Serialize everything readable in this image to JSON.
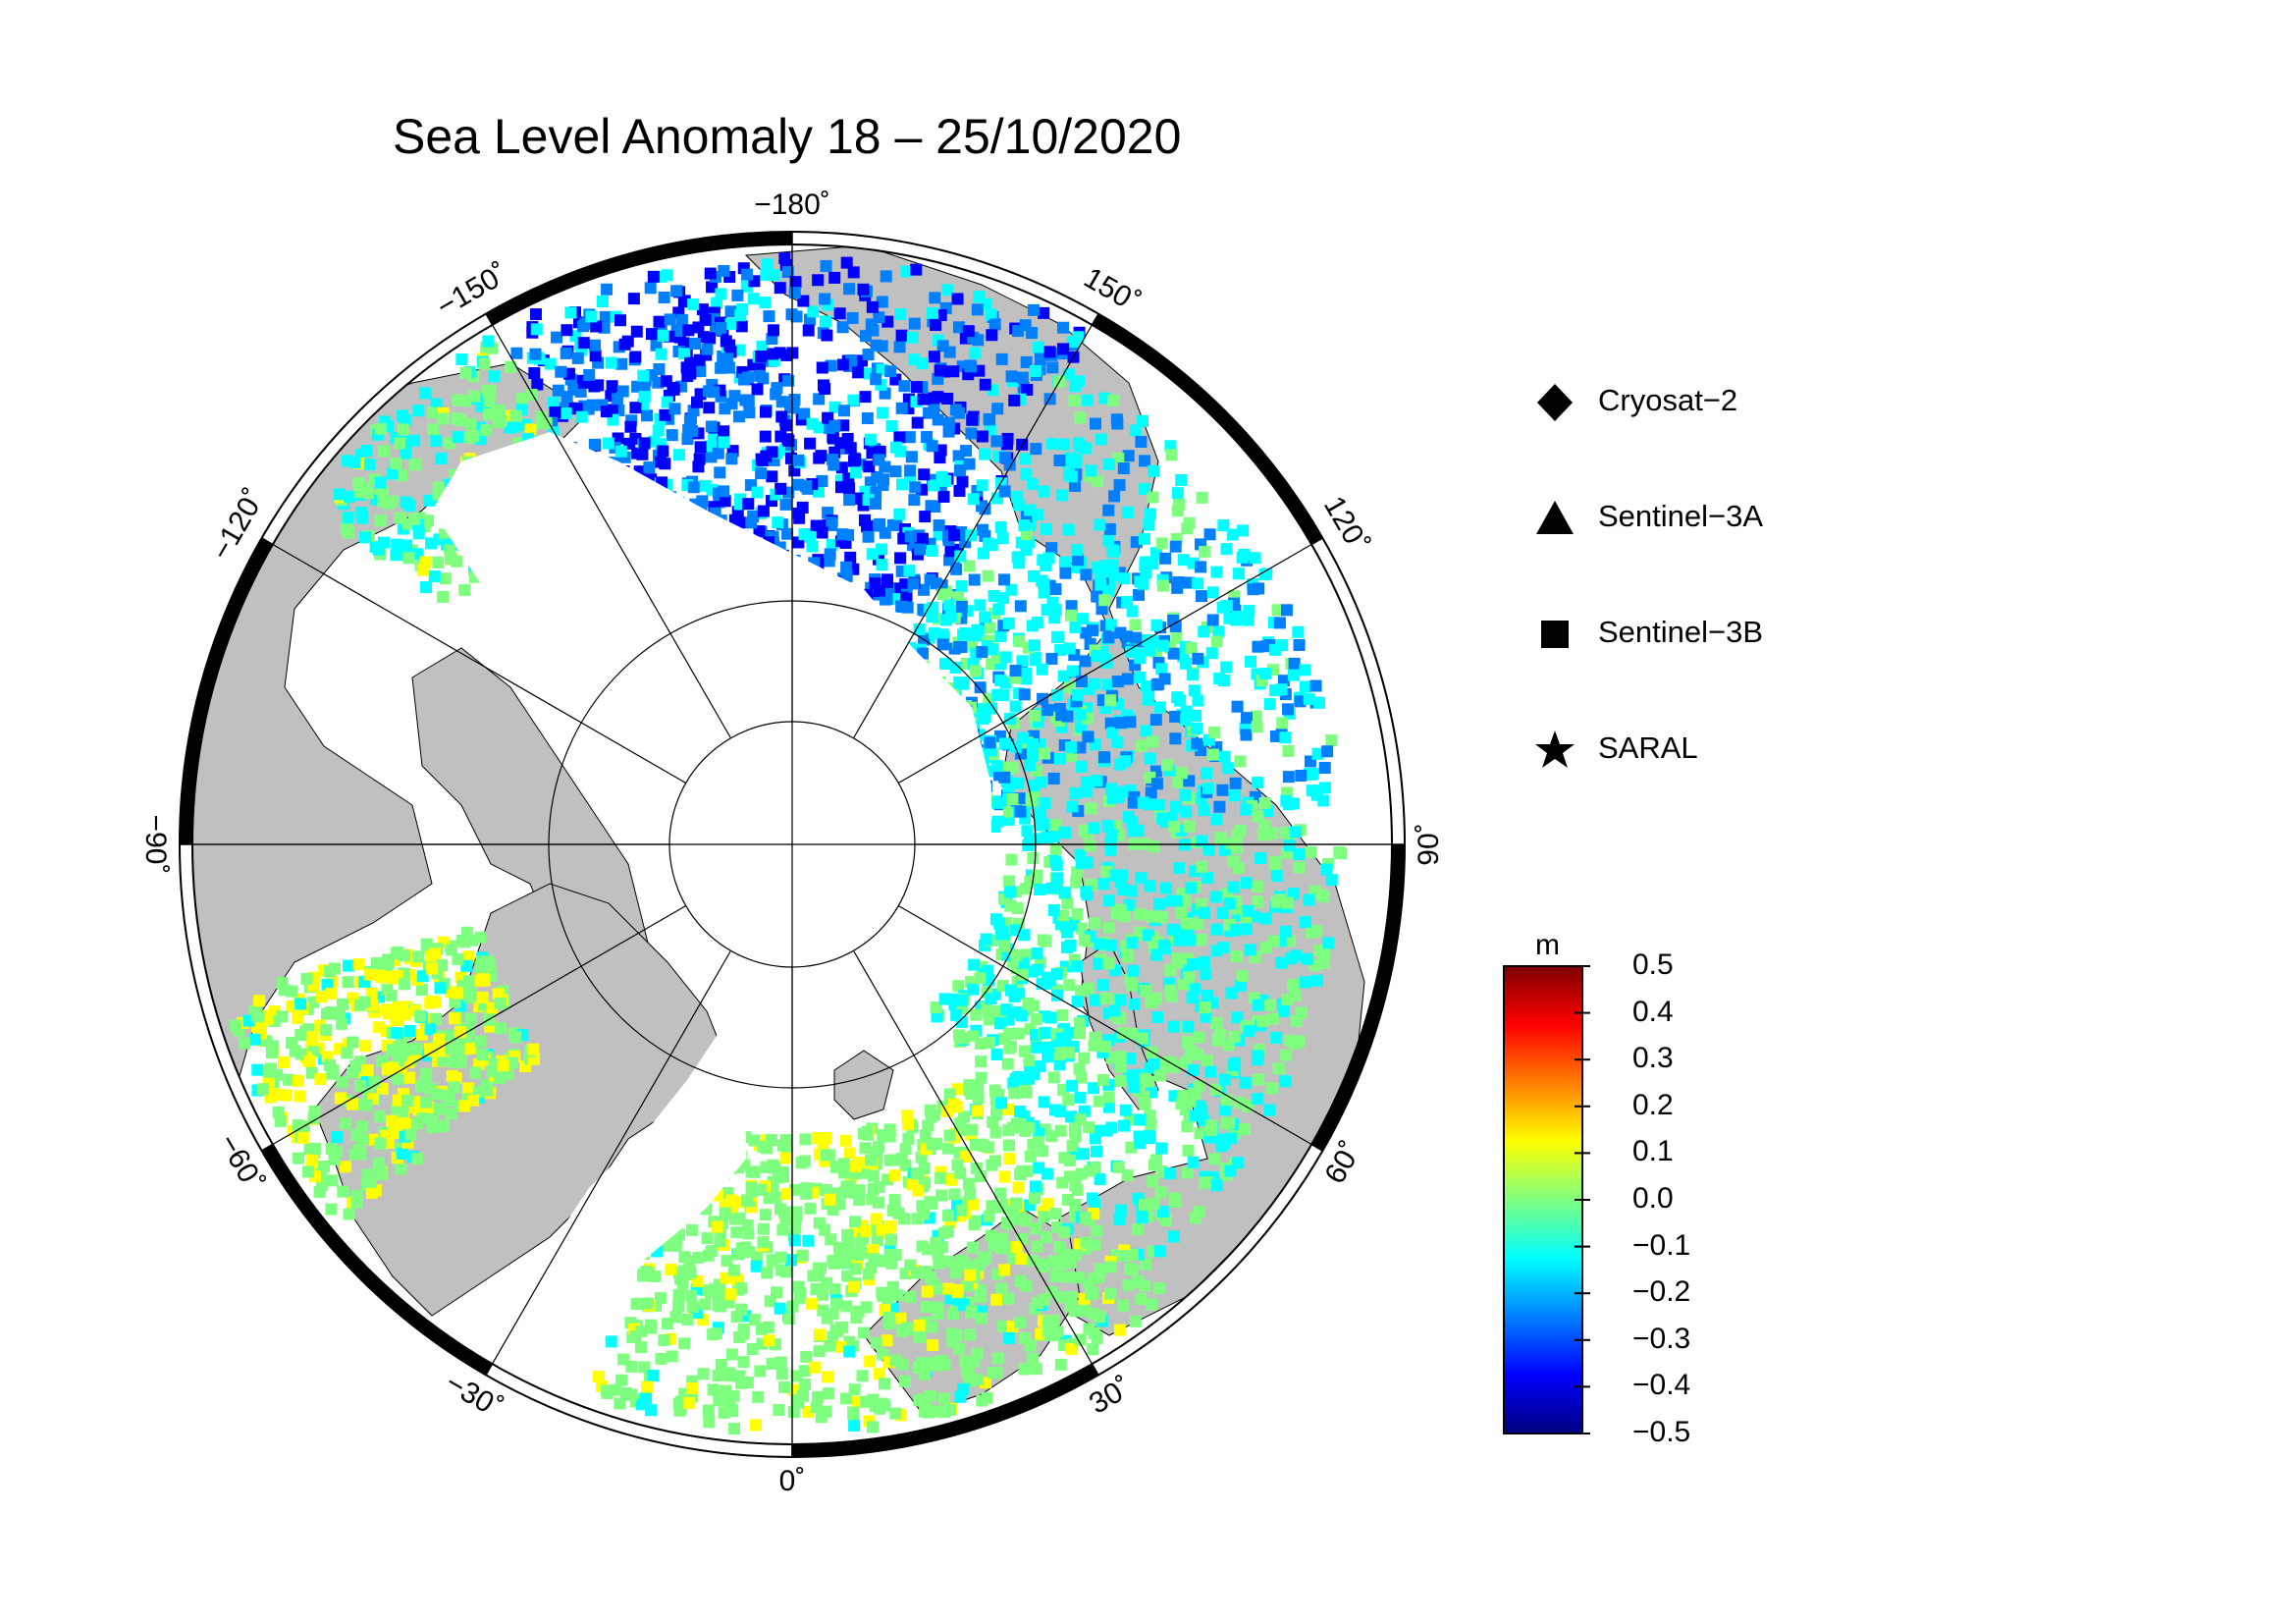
{
  "title": "Sea Level Anomaly 18 – 25/10/2020",
  "map": {
    "projection": "north polar stereographic",
    "longitude_labels": [
      {
        "lon": -180,
        "text": "−180˚"
      },
      {
        "lon": 150,
        "text": "150˚"
      },
      {
        "lon": 120,
        "text": "120˚"
      },
      {
        "lon": 90,
        "text": "90˚"
      },
      {
        "lon": 60,
        "text": "60˚"
      },
      {
        "lon": 30,
        "text": "30˚"
      },
      {
        "lon": 0,
        "text": "0˚"
      },
      {
        "lon": -30,
        "text": "−30˚"
      },
      {
        "lon": -60,
        "text": "−60˚"
      },
      {
        "lon": -90,
        "text": "−90˚"
      },
      {
        "lon": -120,
        "text": "−120˚"
      },
      {
        "lon": -150,
        "text": "−150˚"
      }
    ],
    "colors": {
      "land": "#c0c0c0",
      "ice": "#ffffff",
      "frame_dark": "#000000",
      "frame_light": "#ffffff"
    }
  },
  "legend": {
    "items": [
      {
        "symbol": "diamond",
        "label": "Cryosat−2"
      },
      {
        "symbol": "triangle",
        "label": "Sentinel−3A"
      },
      {
        "symbol": "square",
        "label": "Sentinel−3B"
      },
      {
        "symbol": "star",
        "label": "SARAL"
      }
    ]
  },
  "colorbar": {
    "unit": "m",
    "range": [
      -0.5,
      0.5
    ],
    "ticks": [
      "0.5",
      "0.4",
      "0.3",
      "0.2",
      "0.1",
      "0.0",
      "−0.1",
      "−0.2",
      "−0.3",
      "−0.4",
      "−0.5"
    ],
    "colors": [
      "#00007f",
      "#0000ff",
      "#007fff",
      "#00ffff",
      "#7fff7f",
      "#ffff00",
      "#ff7f00",
      "#ff0000",
      "#7f0000"
    ]
  }
}
